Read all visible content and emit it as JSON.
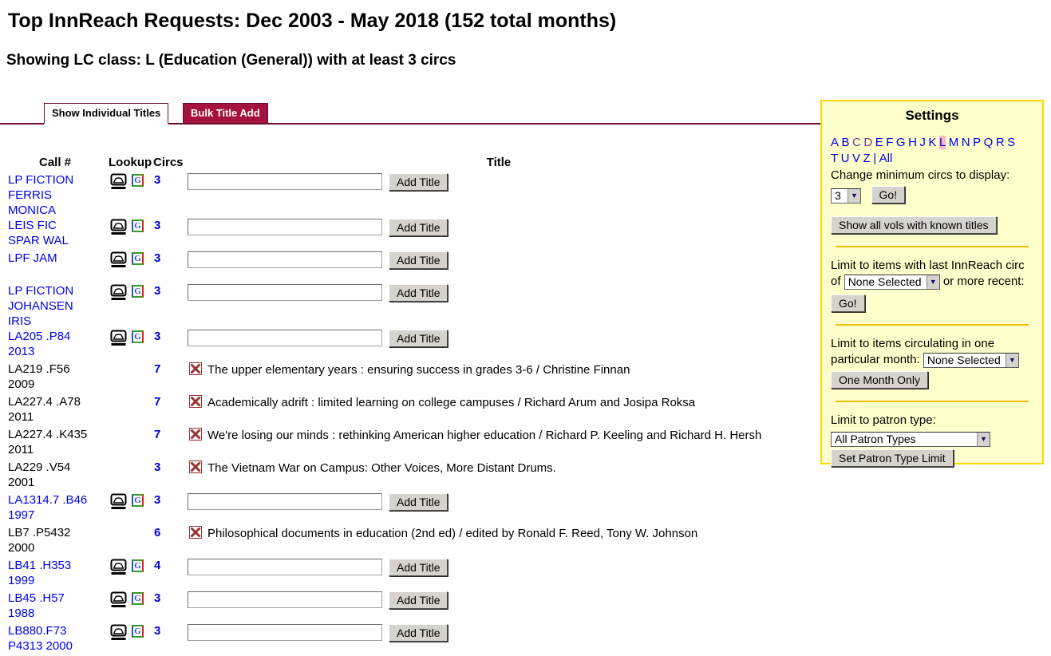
{
  "header": {
    "title": "Top InnReach Requests: Dec 2003 - May 2018 (152 total months)",
    "subtitle": "Showing LC class: L (Education (General)) with at least 3 circs"
  },
  "tabs": {
    "individual": "Show Individual Titles",
    "bulk": "Bulk Title Add"
  },
  "table": {
    "headers": {
      "call": "Call #",
      "lookup": "Lookup",
      "circs": "Circs",
      "title": "Title"
    },
    "add_button_label": "Add Title",
    "rows": [
      {
        "call": "LP FICTION FERRIS MONICA",
        "circs": "3",
        "kind": "input"
      },
      {
        "call": "LEIS FIC SPAR WAL",
        "circs": "3",
        "kind": "input"
      },
      {
        "call": "LPF JAM",
        "circs": "3",
        "kind": "input"
      },
      {
        "call": "LP FICTION JOHANSEN IRIS",
        "circs": "3",
        "kind": "input"
      },
      {
        "call": "LA205 .P84 2013",
        "circs": "3",
        "kind": "input"
      },
      {
        "call": "LA219 .F56 2009",
        "circs": "7",
        "kind": "title",
        "title": "The upper elementary years : ensuring success in grades 3-6 / Christine Finnan"
      },
      {
        "call": "LA227.4 .A78 2011",
        "circs": "7",
        "kind": "title",
        "title": "Academically adrift : limited learning on college campuses / Richard Arum and Josipa Roksa"
      },
      {
        "call": "LA227.4 .K435 2011",
        "circs": "7",
        "kind": "title",
        "title": "We're losing our minds : rethinking American higher education / Richard P. Keeling and Richard H. Hersh"
      },
      {
        "call": "LA229 .V54 2001",
        "circs": "3",
        "kind": "title",
        "title": "The Vietnam War on Campus: Other Voices, More Distant Drums."
      },
      {
        "call": "LA1314.7 .B46 1997",
        "circs": "3",
        "kind": "input"
      },
      {
        "call": "LB7 .P5432 2000",
        "circs": "6",
        "kind": "title",
        "title": "Philosophical documents in education (2nd ed) / edited by Ronald F. Reed, Tony W. Johnson"
      },
      {
        "call": "LB41 .H353 1999",
        "circs": "4",
        "kind": "input"
      },
      {
        "call": "LB45 .H57 1988",
        "circs": "3",
        "kind": "input"
      },
      {
        "call": "LB880.F73 P4313 2000",
        "circs": "3",
        "kind": "input"
      }
    ]
  },
  "icons": {
    "google_letter": "G",
    "dropdown_arrow": "▼"
  },
  "settings": {
    "heading": "Settings",
    "letters_line1": [
      "A",
      "B",
      "C",
      "D",
      "E",
      "F",
      "G",
      "H",
      "J",
      "K",
      "L",
      "M",
      "N",
      "P",
      "Q",
      "R",
      "S"
    ],
    "letters_line2": [
      "T",
      "U",
      "V",
      "Z"
    ],
    "letters_visited": [
      "C",
      "D"
    ],
    "letter_current": "L",
    "separator": "|",
    "all_label": "All",
    "min_circs": {
      "label": "Change minimum circs to display:",
      "value": "3",
      "go": "Go!"
    },
    "show_all_button": "Show all vols with known titles",
    "last_circ": {
      "text_before": "Limit to items with last InnReach circ of",
      "select_value": "None Selected",
      "text_after": "or more recent:",
      "go": "Go!"
    },
    "month": {
      "label": "Limit to items circulating in one particular month:",
      "select_value": "None Selected",
      "button": "One Month Only"
    },
    "patron": {
      "label": "Limit to patron type:",
      "select_value": "All Patron Types",
      "button": "Set Patron Type Limit"
    }
  },
  "colors": {
    "link": "#0000EE",
    "visited_link": "#80309c",
    "circ_count": "#0000CC",
    "tab_crimson": "#a4123e",
    "rule_maroon": "#6d0b2b",
    "panel_bg": "#ffffcc",
    "panel_border": "#ffd700",
    "gold_rule": "#edc000",
    "current_letter_highlight": "#ffb6c1",
    "x_icon": "#993333"
  }
}
